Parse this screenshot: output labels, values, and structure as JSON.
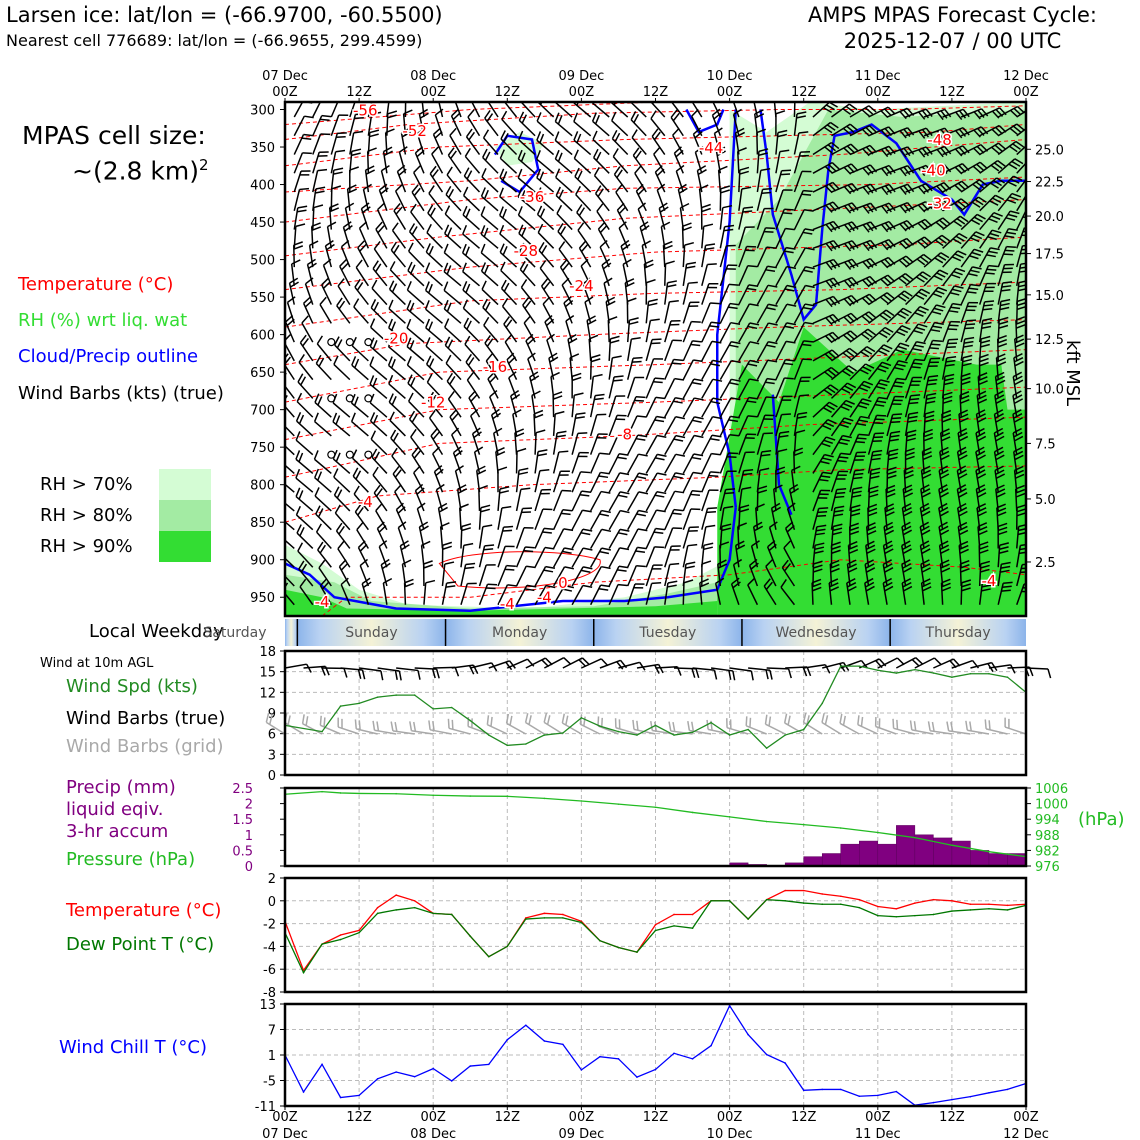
{
  "header": {
    "title_left": "Larsen ice: lat/lon = (-66.9700, -60.5500)",
    "subtitle_left": "Nearest cell 776689: lat/lon = (-66.9655, 299.4599)",
    "title_right_1": "AMPS MPAS Forecast Cycle:",
    "title_right_2": "2025-12-07 / 00 UTC"
  },
  "cell_size": {
    "line1": "MPAS cell size:",
    "line2": "~(2.8 km)",
    "sup": "2"
  },
  "left_legend": {
    "temperature": "Temperature (°C)",
    "rh": "RH (%) wrt liq. wat",
    "cloud": "Cloud/Precip outline",
    "barbs": "Wind Barbs (kts) (true)",
    "rh70": "RH > 70%",
    "rh80": "RH > 80%",
    "rh90": "RH > 90%",
    "weekday_label": "Local Weekday",
    "wind10m": "Wind at 10m AGL",
    "wspd": "Wind Spd (kts)",
    "wbarb_true": "Wind Barbs (true)",
    "wbarb_grid": "Wind Barbs (grid)",
    "precip1": "Precip (mm)",
    "precip2": "liquid eqiv.",
    "precip3": "3-hr accum",
    "pressure": "Pressure (hPa)",
    "temp2": "Temperature (°C)",
    "dewpt": "Dew Point T (°C)",
    "windchill": "Wind Chill T (°C)",
    "hpa_label": "(hPa)",
    "kft_label": "kft MSL"
  },
  "colors": {
    "temp": "#ff0000",
    "rh_text": "#33dd33",
    "cloud": "#0000ff",
    "rh70": "#d4fcd4",
    "rh80": "#a3eba3",
    "rh90": "#33dd33",
    "wspd": "#228b22",
    "precip": "#800080",
    "pressure": "#22bb22",
    "dewpt": "#007700",
    "windchill": "#0000ff",
    "grid_barb": "#a9a9a9"
  },
  "top_axis": [
    {
      "d": "07 Dec",
      "t": "00Z"
    },
    {
      "d": "",
      "t": "12Z"
    },
    {
      "d": "08 Dec",
      "t": "00Z"
    },
    {
      "d": "",
      "t": "12Z"
    },
    {
      "d": "09 Dec",
      "t": "00Z"
    },
    {
      "d": "",
      "t": "12Z"
    },
    {
      "d": "10 Dec",
      "t": "00Z"
    },
    {
      "d": "",
      "t": "12Z"
    },
    {
      "d": "11 Dec",
      "t": "00Z"
    },
    {
      "d": "",
      "t": "12Z"
    },
    {
      "d": "12 Dec",
      "t": "00Z"
    }
  ],
  "weekdays": [
    "Saturday",
    "Sunday",
    "Monday",
    "Tuesday",
    "Wednesday",
    "Thursday"
  ],
  "chart_data": [
    {
      "type": "contour",
      "name": "cross-section",
      "x_hours": [
        0,
        120
      ],
      "pressure_ticks": [
        300,
        350,
        400,
        450,
        500,
        550,
        600,
        650,
        700,
        750,
        800,
        850,
        900,
        950
      ],
      "pressure_range": [
        290,
        975
      ],
      "kft_ticks": [
        "25.0",
        "22.5",
        "20.0",
        "17.5",
        "15.0",
        "12.5",
        "10.0",
        "7.5",
        "5.0",
        "2.5"
      ],
      "kft_pressures": [
        353,
        396,
        442,
        492,
        547,
        606,
        672,
        745,
        819,
        903
      ],
      "temperature_labels": [
        {
          "text": "-56",
          "h": 13,
          "p": 308
        },
        {
          "text": "-52",
          "h": 21,
          "p": 335
        },
        {
          "text": "-44",
          "h": 69,
          "p": 358
        },
        {
          "text": "-48",
          "h": 106,
          "p": 347
        },
        {
          "text": "-40",
          "h": 105,
          "p": 388
        },
        {
          "text": "-32",
          "h": 106,
          "p": 432
        },
        {
          "text": "-36",
          "h": 40,
          "p": 423
        },
        {
          "text": "-28",
          "h": 39,
          "p": 495
        },
        {
          "text": "-24",
          "h": 48,
          "p": 542
        },
        {
          "text": "-20",
          "h": 18,
          "p": 612
        },
        {
          "text": "-16",
          "h": 34,
          "p": 650
        },
        {
          "text": "-12",
          "h": 24,
          "p": 697
        },
        {
          "text": "-8",
          "h": 55,
          "p": 740
        },
        {
          "text": "-4",
          "h": 13,
          "p": 830
        },
        {
          "text": "-4",
          "h": 114,
          "p": 935
        },
        {
          "text": "-4",
          "h": 6,
          "p": 963
        },
        {
          "text": "-4",
          "h": 36,
          "p": 966
        },
        {
          "text": "-4",
          "h": 42,
          "p": 957
        },
        {
          "text": "0",
          "h": 45,
          "p": 938
        }
      ],
      "rh_shading": "RH>70 light, RH>80 medium, RH>90 dark green; cloud outline blue"
    },
    {
      "type": "line",
      "name": "wind-speed",
      "ylabel": "Wind Spd (kts)",
      "ylim": [
        0,
        18
      ],
      "yticks": [
        0,
        3,
        6,
        9,
        12,
        15,
        18
      ],
      "x": [
        0,
        6,
        9,
        12,
        15,
        18,
        21,
        24,
        27,
        30,
        33,
        36,
        39,
        42,
        45,
        48,
        51,
        54,
        57,
        60,
        63,
        66,
        69,
        72,
        75,
        78,
        81,
        84,
        87,
        90,
        93,
        96,
        99,
        102,
        105,
        108,
        111,
        114,
        117,
        120
      ],
      "values": [
        7.2,
        6.3,
        10.0,
        10.4,
        11.3,
        11.6,
        11.6,
        9.6,
        9.8,
        7.9,
        5.8,
        4.3,
        4.5,
        5.8,
        6.1,
        8.3,
        7.1,
        6.3,
        5.8,
        7.2,
        5.8,
        6.2,
        7.6,
        5.8,
        6.6,
        3.9,
        5.8,
        6.6,
        10.4,
        15.8,
        15.8,
        15.2,
        14.8,
        15.3,
        14.8,
        14.2,
        14.7,
        14.7,
        14.2,
        12.0
      ]
    },
    {
      "type": "bar+line",
      "name": "precip-pressure",
      "precip_ylim": [
        0,
        2.5
      ],
      "precip_yticks": [
        0,
        0.5,
        1.0,
        1.5,
        2.0,
        2.5
      ],
      "precip_bars": [
        {
          "h0": 72,
          "h1": 75,
          "v": 0.1
        },
        {
          "h0": 75,
          "h1": 78,
          "v": 0.05
        },
        {
          "h0": 81,
          "h1": 84,
          "v": 0.1
        },
        {
          "h0": 84,
          "h1": 87,
          "v": 0.3
        },
        {
          "h0": 87,
          "h1": 90,
          "v": 0.4
        },
        {
          "h0": 90,
          "h1": 93,
          "v": 0.7
        },
        {
          "h0": 93,
          "h1": 96,
          "v": 0.8
        },
        {
          "h0": 96,
          "h1": 99,
          "v": 0.7
        },
        {
          "h0": 99,
          "h1": 102,
          "v": 1.3
        },
        {
          "h0": 102,
          "h1": 105,
          "v": 1.0
        },
        {
          "h0": 105,
          "h1": 108,
          "v": 0.9
        },
        {
          "h0": 108,
          "h1": 111,
          "v": 0.8
        },
        {
          "h0": 111,
          "h1": 114,
          "v": 0.5
        },
        {
          "h0": 114,
          "h1": 117,
          "v": 0.4
        },
        {
          "h0": 117,
          "h1": 120,
          "v": 0.4
        }
      ],
      "pressure_ylim": [
        976,
        1006
      ],
      "pressure_yticks": [
        976,
        982,
        988,
        994,
        1000,
        1006
      ],
      "pressure_x": [
        0,
        6,
        9,
        12,
        18,
        24,
        30,
        36,
        42,
        48,
        54,
        60,
        66,
        72,
        78,
        84,
        90,
        96,
        102,
        108,
        114,
        120
      ],
      "pressure_values": [
        1003.6,
        1004.6,
        1004.1,
        1003.9,
        1003.8,
        1003.2,
        1002.9,
        1002.8,
        1002.0,
        1001.0,
        999.8,
        998.6,
        996.6,
        994.9,
        993.1,
        991.9,
        990.6,
        988.9,
        986.9,
        984.0,
        981.5,
        979.6
      ]
    },
    {
      "type": "line",
      "name": "temperature-dewpoint",
      "ylim": [
        -8,
        2
      ],
      "yticks": [
        -8,
        -6,
        -4,
        -2,
        0,
        2
      ],
      "x": [
        0,
        3,
        6,
        9,
        12,
        15,
        18,
        21,
        24,
        27,
        30,
        33,
        36,
        39,
        42,
        45,
        48,
        51,
        54,
        57,
        60,
        63,
        66,
        69,
        72,
        75,
        78,
        81,
        84,
        87,
        90,
        93,
        96,
        99,
        102,
        105,
        108,
        111,
        114,
        117,
        120
      ],
      "series": [
        {
          "name": "Temperature",
          "values": [
            -1.8,
            -6.1,
            -3.8,
            -3.0,
            -2.6,
            -0.6,
            0.5,
            0.0,
            -1.1,
            -1.2,
            -3.1,
            -4.9,
            -4.0,
            -1.5,
            -1.1,
            -1.2,
            -1.8,
            -3.5,
            -4.1,
            -4.5,
            -2.1,
            -1.2,
            -1.2,
            0.0,
            0.0,
            -1.6,
            0.1,
            0.9,
            0.9,
            0.6,
            0.4,
            0.1,
            -0.5,
            -0.7,
            -0.2,
            0.1,
            0.0,
            -0.3,
            -0.3,
            -0.4,
            -0.3
          ]
        },
        {
          "name": "Dew Point",
          "values": [
            -2.8,
            -6.3,
            -3.8,
            -3.4,
            -2.8,
            -1.1,
            -0.8,
            -0.6,
            -1.1,
            -1.2,
            -3.1,
            -4.9,
            -4.0,
            -1.6,
            -1.5,
            -1.5,
            -1.9,
            -3.5,
            -4.1,
            -4.5,
            -2.6,
            -2.2,
            -2.4,
            0.0,
            0.0,
            -1.6,
            0.1,
            0.0,
            -0.2,
            -0.3,
            -0.3,
            -0.6,
            -1.3,
            -1.4,
            -1.3,
            -1.2,
            -0.9,
            -0.8,
            -0.7,
            -0.8,
            -0.4
          ]
        }
      ]
    },
    {
      "type": "line",
      "name": "wind-chill",
      "ylim": [
        -11,
        13
      ],
      "yticks": [
        -11,
        -5,
        1,
        7,
        13
      ],
      "x": [
        0,
        3,
        6,
        9,
        12,
        15,
        18,
        21,
        24,
        27,
        30,
        33,
        36,
        39,
        42,
        45,
        48,
        51,
        54,
        57,
        60,
        63,
        66,
        69,
        72,
        75,
        78,
        81,
        84,
        87,
        90,
        93,
        96,
        99,
        102,
        105,
        108,
        111,
        114,
        117,
        120
      ],
      "values": [
        1.0,
        -7.7,
        -1.2,
        -9.0,
        -8.5,
        -4.6,
        -3.0,
        -4.1,
        -2.2,
        -5.1,
        -1.6,
        -1.2,
        4.6,
        8.0,
        4.3,
        3.5,
        -2.5,
        0.6,
        0.1,
        -4.2,
        -2.4,
        1.4,
        0.1,
        3.2,
        12.6,
        5.8,
        1.1,
        -0.9,
        -7.3,
        -7.1,
        -7.1,
        -8.7,
        -8.5,
        -7.6,
        -10.8,
        -10.2,
        -9.5,
        -8.8,
        -7.9,
        -7.1,
        -5.7
      ]
    }
  ]
}
